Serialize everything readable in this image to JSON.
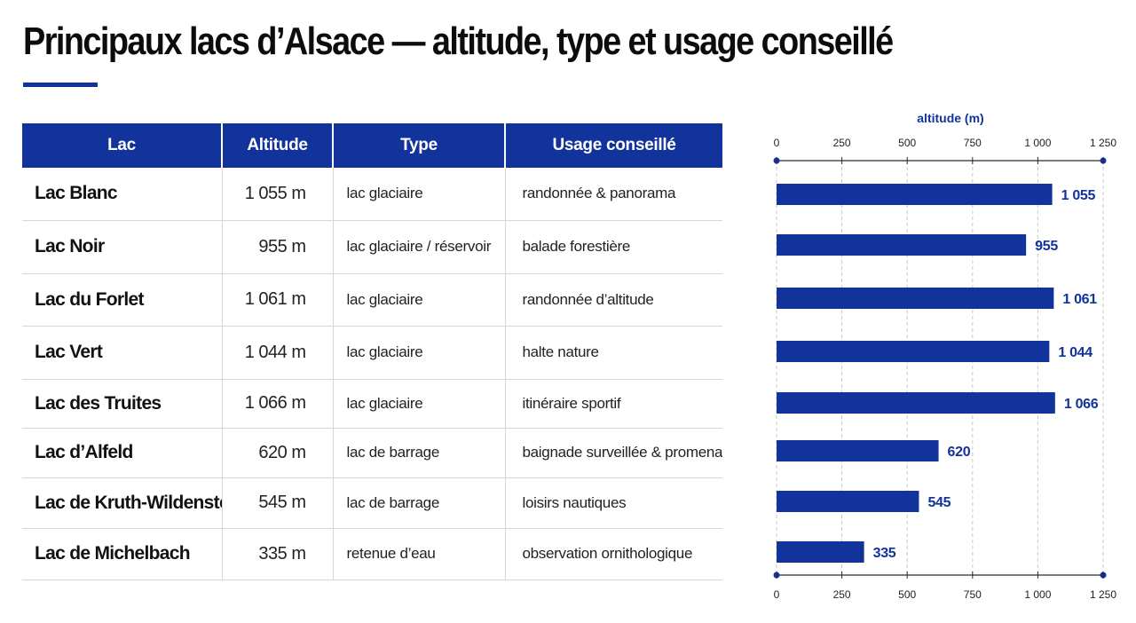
{
  "title": "Principaux lacs d’Alsace — altitude, type et usage conseillé",
  "table": {
    "headers": [
      "Lac",
      "Altitude",
      "Type",
      "Usage conseillé"
    ],
    "rows": [
      [
        "Lac Blanc",
        "1 055 m",
        "lac glaciaire",
        "randonnée & panorama"
      ],
      [
        "Lac Noir",
        "955 m",
        "lac glaciaire / réservoir",
        "balade forestière"
      ],
      [
        "Lac du Forlet",
        "1 061 m",
        "lac glaciaire",
        "randonnée d’altitude"
      ],
      [
        "Lac Vert",
        "1 044 m",
        "lac glaciaire",
        "halte nature"
      ],
      [
        "Lac des Truites",
        "1 066 m",
        "lac glaciaire",
        "itinéraire sportif"
      ],
      [
        "Lac d’Alfeld",
        "620 m",
        "lac de barrage",
        "baignade surveillée & promenade"
      ],
      [
        "Lac de Kruth-Wildenstein",
        "545 m",
        "lac de barrage",
        "loisirs nautiques"
      ],
      [
        "Lac de Michelbach",
        "335 m",
        "retenue d’eau",
        "observation ornithologique"
      ]
    ]
  },
  "chart_data": {
    "type": "bar",
    "orientation": "horizontal",
    "xlabel": "altitude (m)",
    "xlim": [
      0,
      1250
    ],
    "ticks": [
      0,
      250,
      500,
      750,
      1000,
      1250
    ],
    "tick_labels": [
      "0",
      "250",
      "500",
      "750",
      "1 000",
      "1 250"
    ],
    "grid": true,
    "values": [
      1055,
      955,
      1061,
      1044,
      1066,
      620,
      545,
      335
    ],
    "value_labels": [
      "1 055",
      "955",
      "1 061",
      "1 044",
      "1 066",
      "620",
      "545",
      "335"
    ]
  },
  "colors": {
    "accent": "#12339c",
    "bar": "#12339c",
    "grid": "#c9c9c9"
  }
}
